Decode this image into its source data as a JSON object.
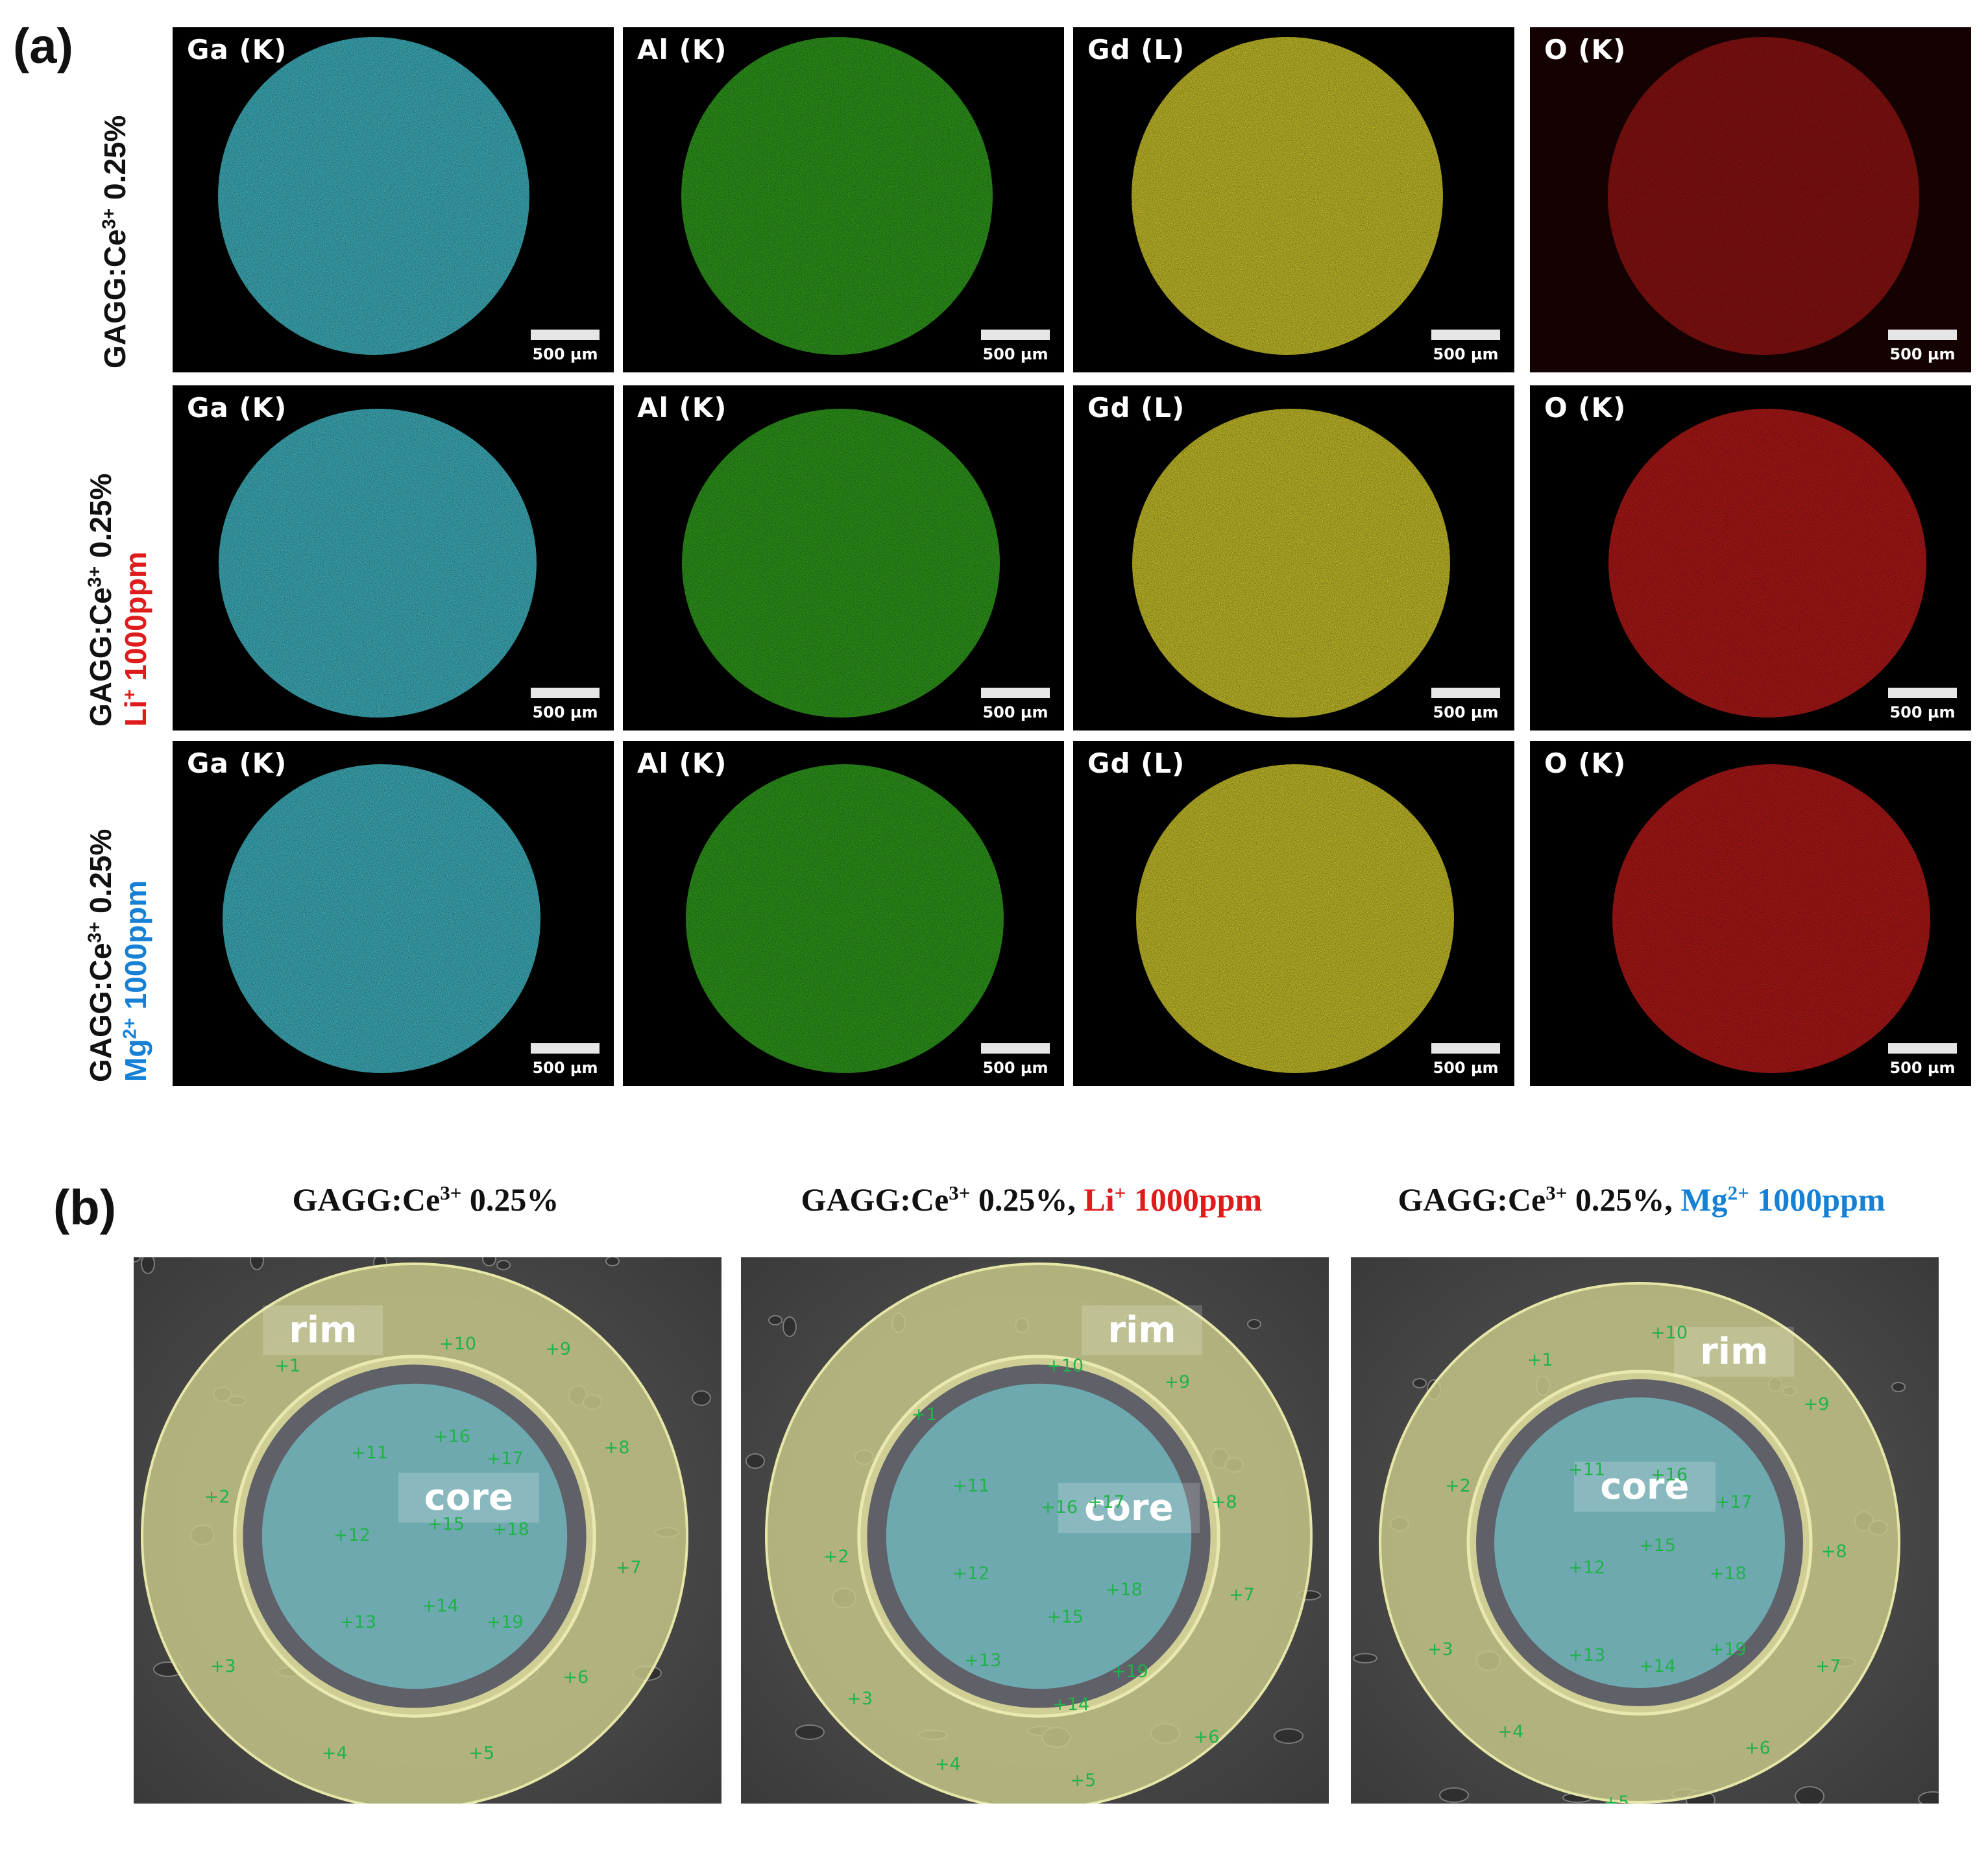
{
  "panel_a": {
    "letter": "(a)",
    "rows": [
      {
        "label_line1": "GAGG:Ce",
        "label_sup": "3+",
        "label_rest": " 0.25%",
        "dopant": "",
        "dopant_sup": "",
        "dopant_rest": "",
        "dopant_color": ""
      },
      {
        "label_line1": "GAGG:Ce",
        "label_sup": "3+",
        "label_rest": " 0.25%",
        "dopant": "Li",
        "dopant_sup": "+",
        "dopant_rest": " 1000ppm",
        "dopant_color": "#e01b1b"
      },
      {
        "label_line1": "GAGG:Ce",
        "label_sup": "3+",
        "label_rest": " 0.25%",
        "dopant": "Mg",
        "dopant_sup": "2+",
        "dopant_rest": " 1000ppm",
        "dopant_color": "#1681d4"
      }
    ],
    "elements": [
      "Ga (K)",
      "Al (K)",
      "Gd (L)",
      "O (K)"
    ],
    "element_colors": [
      "#3fb3bf",
      "#2f9a1c",
      "#c9c12a",
      "#b01818"
    ],
    "scale_bar": "500 µm"
  },
  "panel_b": {
    "letter": "(b)",
    "titles": [
      {
        "main": "GAGG:Ce",
        "sup": "3+",
        "rest": " 0.25%",
        "dopant": "",
        "dopant_sup": "",
        "dopant_rest": ""
      },
      {
        "main": "GAGG:Ce",
        "sup": "3+",
        "rest": " 0.25%, ",
        "dopant": "Li",
        "dopant_sup": "+",
        "dopant_rest": " 1000ppm"
      },
      {
        "main": "GAGG:Ce",
        "sup": "3+",
        "rest": " 0.25%, ",
        "dopant": "Mg",
        "dopant_sup": "2+",
        "dopant_rest": " 1000ppm"
      }
    ],
    "rim_label": "rim",
    "core_label": "core",
    "points": [
      "+1",
      "+2",
      "+3",
      "+4",
      "+5",
      "+6",
      "+7",
      "+8",
      "+9",
      "+10",
      "+11",
      "+12",
      "+13",
      "+14",
      "+15",
      "+16",
      "+17",
      "+18",
      "+19"
    ]
  }
}
